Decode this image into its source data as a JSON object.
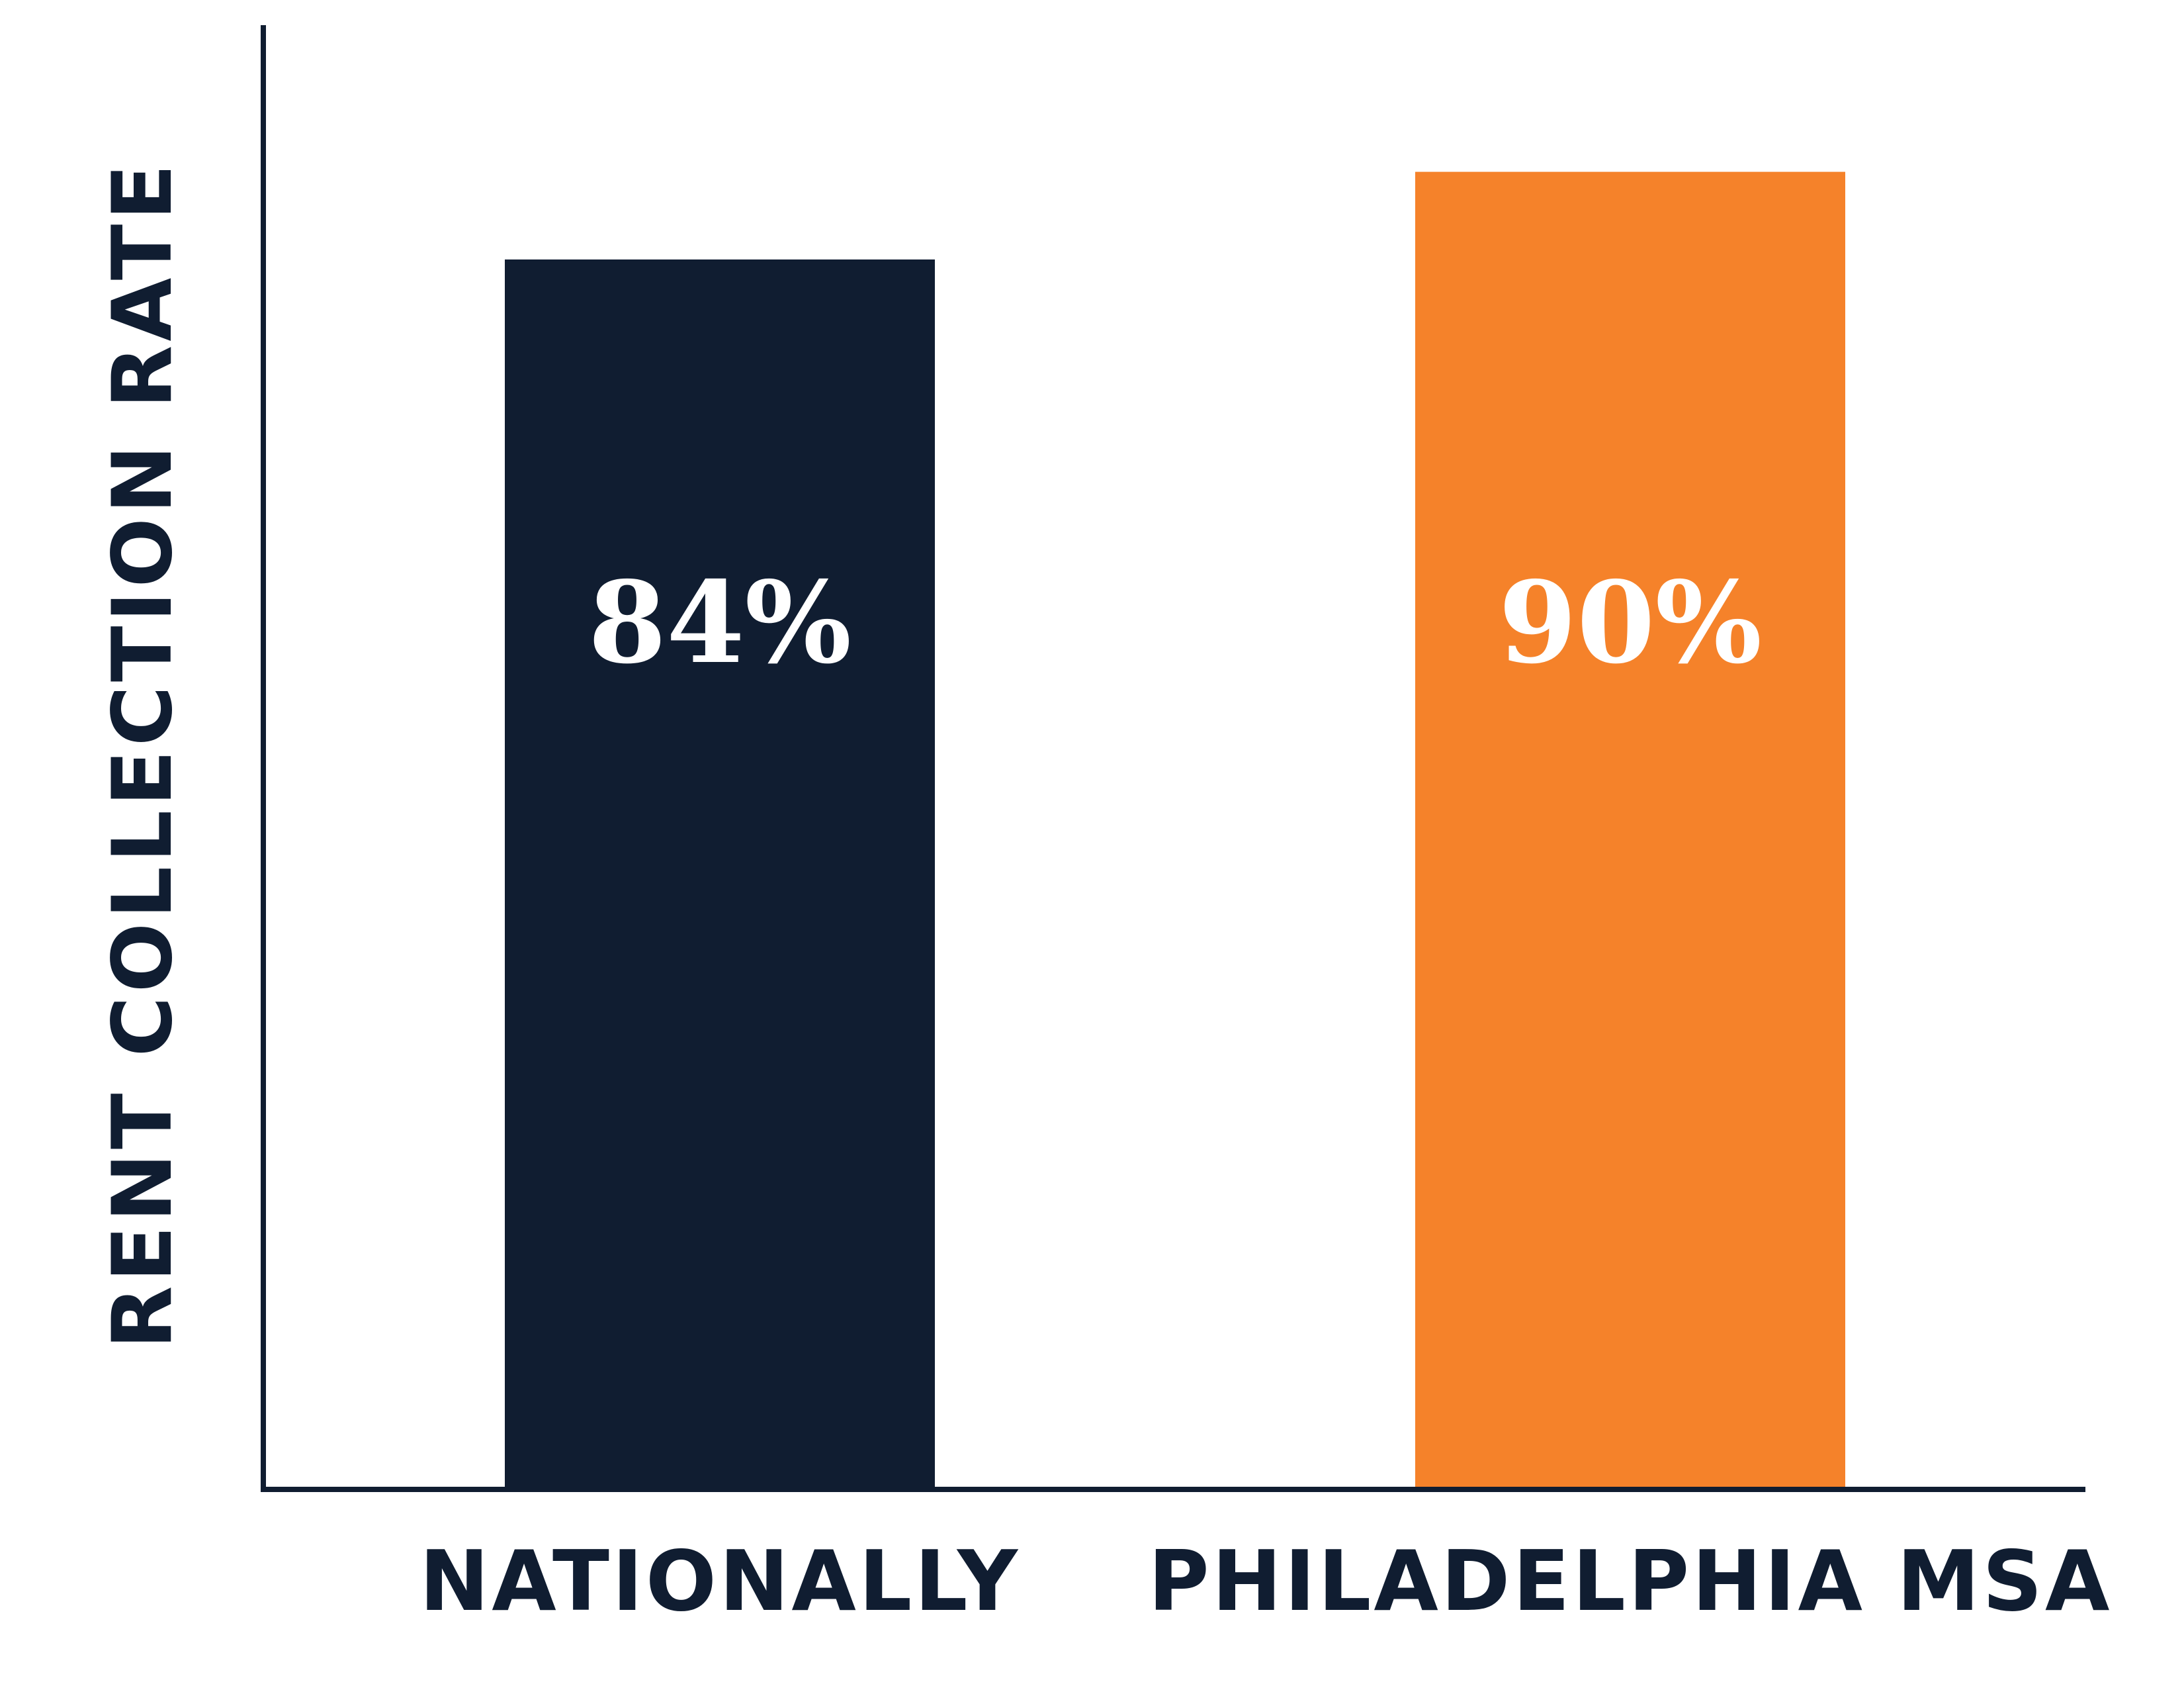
{
  "chart_data": {
    "type": "bar",
    "title": "",
    "ylabel": "RENT COLLECTION RATE",
    "xlabel": "",
    "categories": [
      "NATIONALLY",
      "PHILADELPHIA MSA"
    ],
    "values": [
      84,
      90
    ],
    "data_labels": [
      "84%",
      "90%"
    ],
    "bar_colors": [
      "#101d31",
      "#f5822a"
    ],
    "ylim": [
      0,
      100
    ],
    "grid": false,
    "legend": "none",
    "text_color": "#101d31",
    "axis_color": "#101d31"
  }
}
